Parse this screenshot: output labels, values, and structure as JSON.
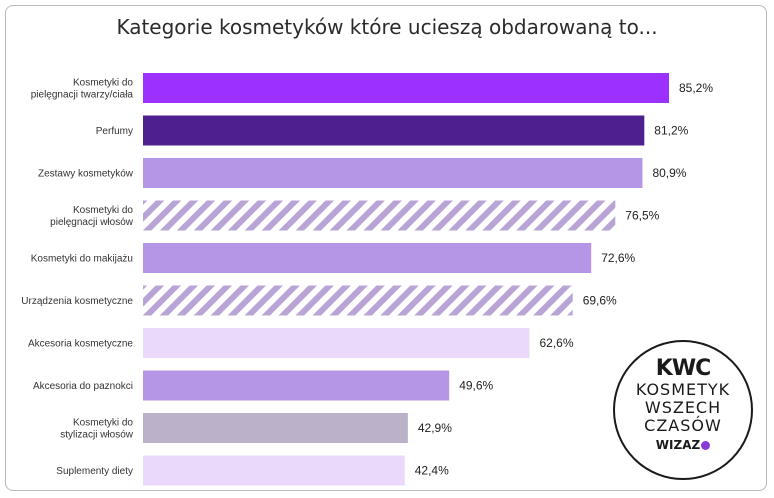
{
  "chart_data": {
    "type": "bar",
    "orientation": "horizontal",
    "title": "Kategorie kosmetyków które ucieszą obdarowaną to...",
    "categories": [
      [
        "Kosmetyki do",
        "pielęgnacji twarzy/ciała"
      ],
      [
        "Perfumy"
      ],
      [
        "Zestawy kosmetyków"
      ],
      [
        "Kosmetyki do",
        "pielęgnacji włosów"
      ],
      [
        "Kosmetyki do makijażu"
      ],
      [
        "Urządzenia kosmetyczne"
      ],
      [
        "Akcesoria kosmetyczne"
      ],
      [
        "Akcesoria do paznokci"
      ],
      [
        "Kosmetyki do",
        "stylizacji włosów"
      ],
      [
        "Suplementy diety"
      ]
    ],
    "values": [
      85.2,
      81.2,
      80.9,
      76.5,
      72.6,
      69.6,
      62.6,
      49.6,
      42.9,
      42.4
    ],
    "value_labels": [
      "85,2%",
      "81,2%",
      "80,9%",
      "76,5%",
      "72,6%",
      "69,6%",
      "62,6%",
      "49,6%",
      "42,9%",
      "42,4%"
    ],
    "bar_colors": [
      "#9b30ff",
      "#4e1f8f",
      "#b596e6",
      "striped",
      "#b596e6",
      "striped",
      "#ead9fb",
      "#b596e6",
      "#bbb1c8",
      "#ead9fb"
    ],
    "stripe_color": "#b9a4d6",
    "xlim": [
      0,
      100
    ],
    "grid": false,
    "legend": "none"
  },
  "badge": {
    "logo": "KWC",
    "line1": "KOSMETYK",
    "line2": "WSZECH",
    "line3": "CZASÓW",
    "brand": "WIZAZ"
  }
}
